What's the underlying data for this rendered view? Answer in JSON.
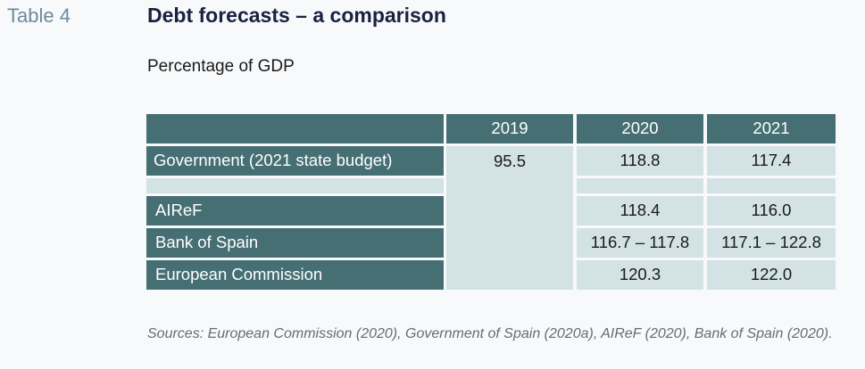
{
  "header": {
    "table_label": "Table 4",
    "title": "Debt forecasts – a comparison",
    "subtitle": "Percentage of GDP"
  },
  "table": {
    "columns": [
      "2019",
      "2020",
      "2021"
    ],
    "rows": [
      {
        "label": "Government (2021 state budget)",
        "v2019": "95.5",
        "v2020": "118.8",
        "v2021": "117.4"
      },
      {
        "label": "",
        "v2019": "",
        "v2020": "",
        "v2021": ""
      },
      {
        "label": "AIReF",
        "v2019": "",
        "v2020": "118.4",
        "v2021": "116.0"
      },
      {
        "label": "Bank of Spain",
        "v2019": "",
        "v2020": "116.7 – 117.8",
        "v2021": "117.1 – 122.8"
      },
      {
        "label": "European Commission",
        "v2019": "",
        "v2020": "120.3",
        "v2021": "122.0"
      }
    ]
  },
  "source": "Sources: European Commission (2020), Government of Spain (2020a), AIReF (2020), Bank of Spain (2020).",
  "colors": {
    "header_fill": "#466f74",
    "data_fill": "#d2e2e5",
    "title_text": "#1a2140",
    "table_label_text": "#6d8a9c"
  }
}
